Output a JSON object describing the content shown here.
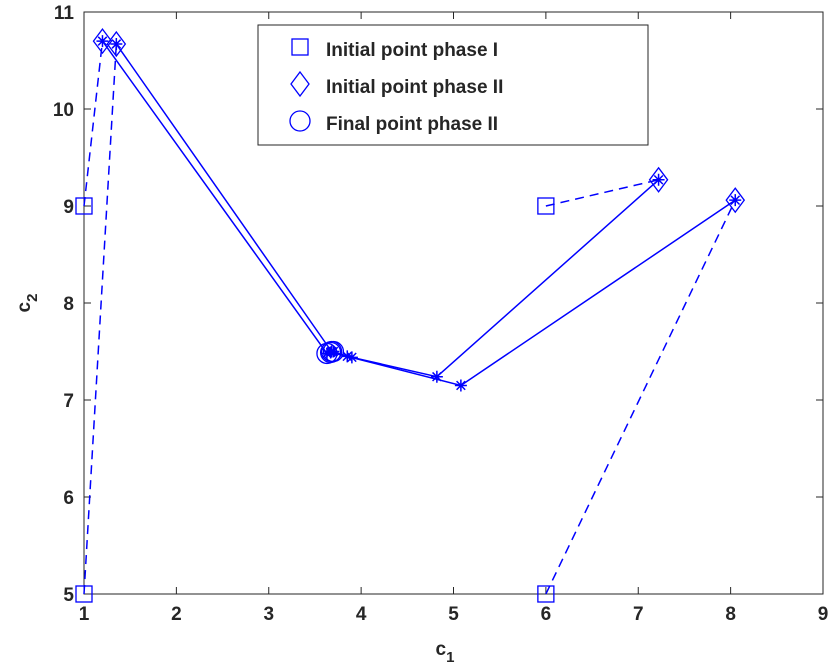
{
  "chart_data": {
    "type": "line",
    "xlabel": {
      "text": "c",
      "subscript": "1"
    },
    "ylabel": {
      "text": "c",
      "subscript": "2"
    },
    "xlim": [
      1,
      9
    ],
    "ylim": [
      5,
      11
    ],
    "xticks": [
      1,
      2,
      3,
      4,
      5,
      6,
      7,
      8,
      9
    ],
    "yticks": [
      5,
      6,
      7,
      8,
      9,
      10,
      11
    ],
    "color": "#0000ff",
    "legend_position": "top",
    "legend": [
      {
        "label": "Initial point phase I",
        "marker": "square"
      },
      {
        "label": "Initial point phase II",
        "marker": "diamond"
      },
      {
        "label": "Final point phase II",
        "marker": "circle"
      }
    ],
    "trajectories": [
      {
        "phase1": {
          "x": [
            1,
            1.2
          ],
          "y": [
            9,
            10.7
          ]
        },
        "phase2": {
          "x": [
            1.2,
            3.63
          ],
          "y": [
            10.7,
            7.48
          ]
        }
      },
      {
        "phase1": {
          "x": [
            1,
            1.35
          ],
          "y": [
            5,
            10.67
          ]
        },
        "phase2": {
          "x": [
            1.35,
            3.68
          ],
          "y": [
            10.67,
            7.5
          ]
        }
      },
      {
        "phase1": {
          "x": [
            6,
            7.22
          ],
          "y": [
            9,
            9.27
          ]
        },
        "phase2": {
          "x": [
            7.22,
            4.82,
            3.9,
            3.67
          ],
          "y": [
            9.27,
            7.24,
            7.44,
            7.49
          ]
        }
      },
      {
        "phase1": {
          "x": [
            6,
            8.05
          ],
          "y": [
            5,
            9.06
          ]
        },
        "phase2": {
          "x": [
            8.05,
            5.08,
            3.85,
            3.7
          ],
          "y": [
            9.06,
            7.15,
            7.45,
            7.5
          ]
        }
      }
    ]
  }
}
